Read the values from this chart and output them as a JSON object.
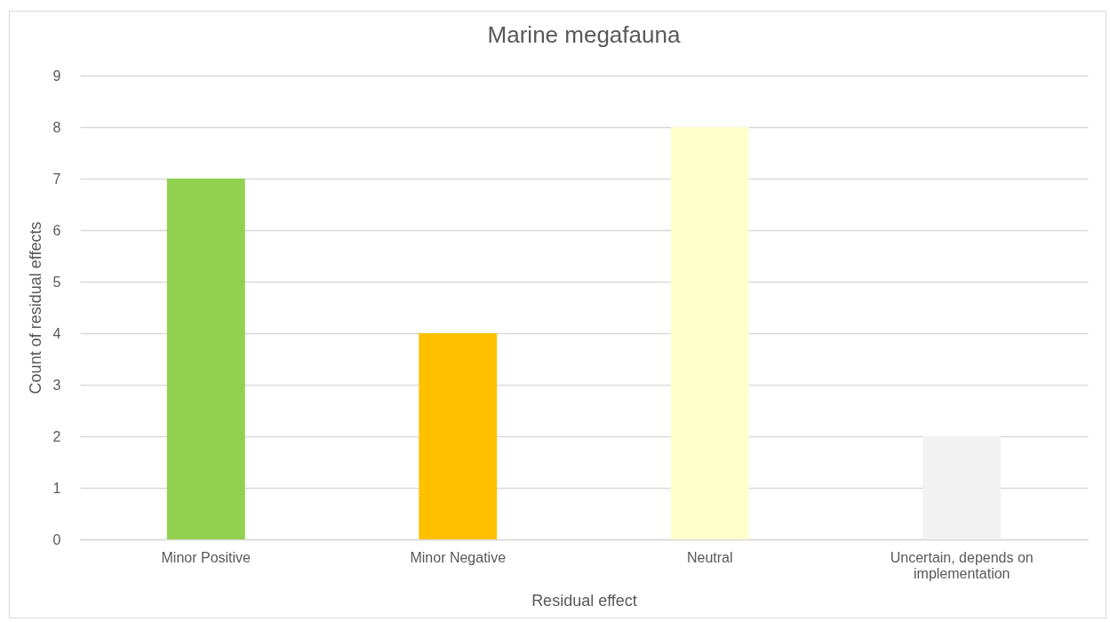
{
  "chart_data": {
    "type": "bar",
    "title": "Marine megafauna",
    "xlabel": "Residual effect",
    "ylabel": "Count of residual effects",
    "categories": [
      "Minor Positive",
      "Minor Negative",
      "Neutral",
      "Uncertain, depends on implementation"
    ],
    "values": [
      7,
      4,
      8,
      2
    ],
    "colors": [
      "#92d050",
      "#ffc000",
      "#ffffcc",
      "#f2f2f2"
    ],
    "ylim": [
      0,
      9
    ],
    "yticks": [
      0,
      1,
      2,
      3,
      4,
      5,
      6,
      7,
      8,
      9
    ],
    "grid": "y"
  }
}
